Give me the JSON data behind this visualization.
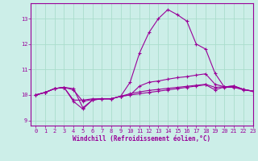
{
  "xlabel": "Windchill (Refroidissement éolien,°C)",
  "background_color": "#cceee8",
  "grid_color": "#aaddcc",
  "line_color": "#990099",
  "xlim": [
    -0.5,
    23
  ],
  "ylim": [
    8.8,
    13.6
  ],
  "yticks": [
    9,
    10,
    11,
    12,
    13
  ],
  "xticks": [
    0,
    1,
    2,
    3,
    4,
    5,
    6,
    7,
    8,
    9,
    10,
    11,
    12,
    13,
    14,
    15,
    16,
    17,
    18,
    19,
    20,
    21,
    22,
    23
  ],
  "series": [
    [
      10.0,
      10.1,
      10.25,
      10.3,
      10.25,
      9.5,
      9.8,
      9.85,
      9.85,
      9.95,
      10.5,
      11.65,
      12.45,
      13.0,
      13.35,
      13.15,
      12.9,
      12.0,
      11.8,
      10.85,
      10.3,
      10.3,
      10.2,
      10.15
    ],
    [
      10.0,
      10.1,
      10.25,
      10.3,
      9.8,
      9.8,
      9.85,
      9.85,
      9.85,
      9.95,
      10.0,
      10.35,
      10.5,
      10.55,
      10.62,
      10.68,
      10.72,
      10.78,
      10.83,
      10.42,
      10.32,
      10.35,
      10.22,
      10.15
    ],
    [
      10.0,
      10.1,
      10.25,
      10.3,
      9.75,
      9.45,
      9.8,
      9.85,
      9.85,
      9.95,
      10.0,
      10.05,
      10.1,
      10.15,
      10.2,
      10.25,
      10.3,
      10.35,
      10.4,
      10.2,
      10.32,
      10.35,
      10.22,
      10.15
    ],
    [
      10.0,
      10.1,
      10.25,
      10.3,
      10.2,
      9.75,
      9.82,
      9.85,
      9.85,
      9.95,
      10.05,
      10.12,
      10.18,
      10.22,
      10.26,
      10.3,
      10.34,
      10.38,
      10.42,
      10.3,
      10.32,
      10.35,
      10.22,
      10.15
    ]
  ]
}
